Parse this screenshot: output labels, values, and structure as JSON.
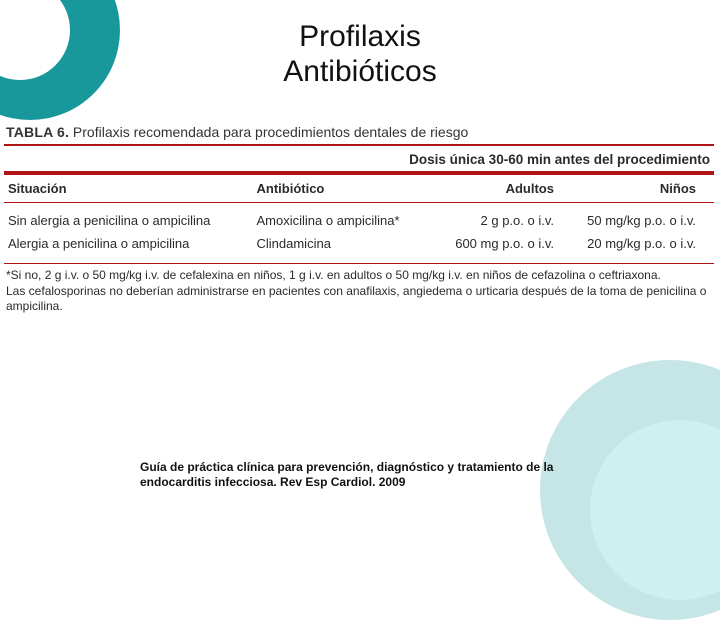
{
  "title": "Profilaxis\nAntibióticos",
  "table": {
    "caption_strong": "TABLA 6.",
    "caption_rest": " Profilaxis recomendada para procedimientos dentales de riesgo",
    "dose_header": "Dosis única 30-60 min antes del procedimiento",
    "columns": [
      "Situación",
      "Antibiótico",
      "Adultos",
      "Niños"
    ],
    "rows": [
      [
        "Sin alergia a penicilina o ampicilina",
        "Amoxicilina o ampicilina*",
        "2 g p.o. o i.v.",
        "50 mg/kg p.o. o i.v."
      ],
      [
        "Alergia a penicilina o ampicilina",
        "Clindamicina",
        "600 mg p.o. o i.v.",
        "20 mg/kg p.o. o i.v."
      ]
    ],
    "footnote1": "*Si no, 2 g i.v. o 50 mg/kg i.v. de cefalexina en niños, 1 g i.v. en adultos o 50 mg/kg i.v. en niños de cefazolina o ceftriaxona.",
    "footnote2": "Las cefalosporinas no deberían administrarse en pacientes con anafilaxis, angiedema o urticaria después de la toma de penicilina o ampicilina."
  },
  "citation": "Guía de práctica clínica para prevención, diagnóstico y tratamiento de la endocarditis infecciosa. Rev Esp Cardiol. 2009",
  "colors": {
    "accent": "#19989c",
    "rule": "#b01414",
    "text": "#2b2b2b"
  }
}
